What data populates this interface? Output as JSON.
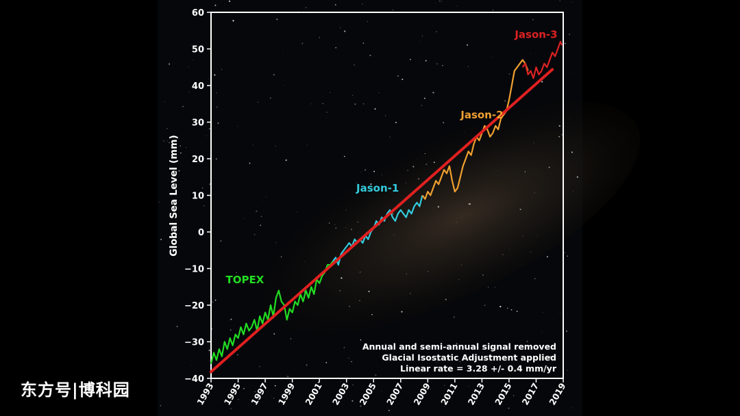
{
  "chart_data": {
    "type": "line",
    "ylabel": "Global Sea Level (mm)",
    "xlabel": "",
    "xlim": [
      1993,
      2019
    ],
    "ylim": [
      -40,
      60
    ],
    "x_ticks": [
      "1993",
      "1995",
      "1997",
      "1999",
      "2001",
      "2003",
      "2005",
      "2007",
      "2009",
      "2011",
      "2013",
      "2015",
      "2017",
      "2019"
    ],
    "y_ticks": [
      "60",
      "50",
      "40",
      "30",
      "20",
      "10",
      "0",
      "−10",
      "−20",
      "−30",
      "−40"
    ],
    "y_tick_values": [
      60,
      50,
      40,
      30,
      20,
      10,
      0,
      -10,
      -20,
      -30,
      -40
    ],
    "grid": false,
    "series": [
      {
        "name": "TOPEX",
        "color": "#22dd22",
        "x": [
          1993.0,
          1993.2,
          1993.4,
          1993.6,
          1993.8,
          1994.0,
          1994.2,
          1994.4,
          1994.6,
          1994.8,
          1995.0,
          1995.2,
          1995.4,
          1995.6,
          1995.8,
          1996.0,
          1996.2,
          1996.4,
          1996.6,
          1996.8,
          1997.0,
          1997.2,
          1997.4,
          1997.6,
          1997.8,
          1998.0,
          1998.2,
          1998.4,
          1998.6,
          1998.8,
          1999.0,
          1999.2,
          1999.4,
          1999.6,
          1999.8,
          2000.0,
          2000.2,
          2000.4,
          2000.6,
          2000.8,
          2001.0,
          2001.2,
          2001.4,
          2001.6,
          2001.8,
          2002.0
        ],
        "values": [
          -36,
          -33,
          -35,
          -32,
          -34,
          -30,
          -32,
          -29,
          -31,
          -28,
          -29,
          -26,
          -28,
          -25,
          -27,
          -26,
          -24,
          -27,
          -23,
          -25,
          -22,
          -24,
          -20,
          -23,
          -18,
          -16,
          -19,
          -20,
          -24,
          -21,
          -22,
          -19,
          -20,
          -17,
          -19,
          -16,
          -18,
          -15,
          -17,
          -13,
          -14,
          -12,
          -11,
          -9,
          -9,
          -8
        ]
      },
      {
        "name": "Jason-1",
        "color": "#33ccdd",
        "x": [
          2002.0,
          2002.2,
          2002.4,
          2002.6,
          2002.8,
          2003.0,
          2003.2,
          2003.4,
          2003.6,
          2003.8,
          2004.0,
          2004.2,
          2004.4,
          2004.6,
          2004.8,
          2005.0,
          2005.2,
          2005.4,
          2005.6,
          2005.8,
          2006.0,
          2006.2,
          2006.4,
          2006.6,
          2006.8,
          2007.0,
          2007.2,
          2007.4,
          2007.6,
          2007.8,
          2008.0,
          2008.2,
          2008.4,
          2008.6
        ],
        "values": [
          -8,
          -7,
          -9,
          -6,
          -5,
          -4,
          -3,
          -4,
          -2,
          -3,
          -2,
          -3,
          -1,
          -2,
          0,
          1,
          3,
          2,
          4,
          3,
          5,
          6,
          4,
          3,
          5,
          6,
          5,
          4,
          6,
          5,
          7,
          8,
          7,
          10
        ]
      },
      {
        "name": "Jason-2",
        "color": "#f0a030",
        "x": [
          2008.6,
          2008.8,
          2009.0,
          2009.2,
          2009.4,
          2009.6,
          2009.8,
          2010.0,
          2010.2,
          2010.4,
          2010.6,
          2010.8,
          2011.0,
          2011.2,
          2011.4,
          2011.6,
          2011.8,
          2012.0,
          2012.2,
          2012.4,
          2012.6,
          2012.8,
          2013.0,
          2013.2,
          2013.4,
          2013.6,
          2013.8,
          2014.0,
          2014.2,
          2014.4,
          2014.6,
          2014.8,
          2015.0,
          2015.2,
          2015.4,
          2015.6,
          2015.8,
          2016.0,
          2016.2,
          2016.4
        ],
        "values": [
          10,
          9,
          11,
          10,
          12,
          14,
          13,
          15,
          17,
          16,
          18,
          14,
          11,
          12,
          15,
          18,
          20,
          22,
          21,
          24,
          26,
          25,
          27,
          29,
          28,
          26,
          27,
          29,
          28,
          31,
          32,
          33,
          36,
          40,
          44,
          45,
          46,
          47,
          46,
          44
        ]
      },
      {
        "name": "Jason-3",
        "color": "#dd2222",
        "x": [
          2016.0,
          2016.2,
          2016.4,
          2016.6,
          2016.8,
          2017.0,
          2017.2,
          2017.4,
          2017.6,
          2017.8,
          2018.0,
          2018.2,
          2018.4,
          2018.6,
          2018.8,
          2018.9
        ],
        "values": [
          45,
          46,
          43,
          44,
          42,
          45,
          43,
          44,
          46,
          45,
          47,
          49,
          48,
          50,
          52,
          51
        ]
      }
    ],
    "trend": {
      "color": "#e02020",
      "slope_per_year": 3.28,
      "x": [
        1993,
        2018.2
      ],
      "values": [
        -38.2,
        44.4
      ]
    },
    "series_labels": [
      {
        "text": "TOPEX",
        "color": "#22dd22",
        "x": 1995.5,
        "y": -14
      },
      {
        "text": "Jason-1",
        "color": "#33ccdd",
        "x": 2005.3,
        "y": 11
      },
      {
        "text": "Jason-2",
        "color": "#f0a030",
        "x": 2013.0,
        "y": 31
      },
      {
        "text": "Jason-3",
        "color": "#dd2222",
        "x": 2017.0,
        "y": 53
      }
    ],
    "annotations": [
      "Annual and semi-annual signal removed",
      "Glacial Isostatic Adjustment applied",
      "Linear rate =  3.28 +/- 0.4 mm/yr"
    ]
  },
  "watermark": "东方号|博科园",
  "colors": {
    "frame": "#ffffff",
    "background": "#000000",
    "text": "#ffffff"
  }
}
